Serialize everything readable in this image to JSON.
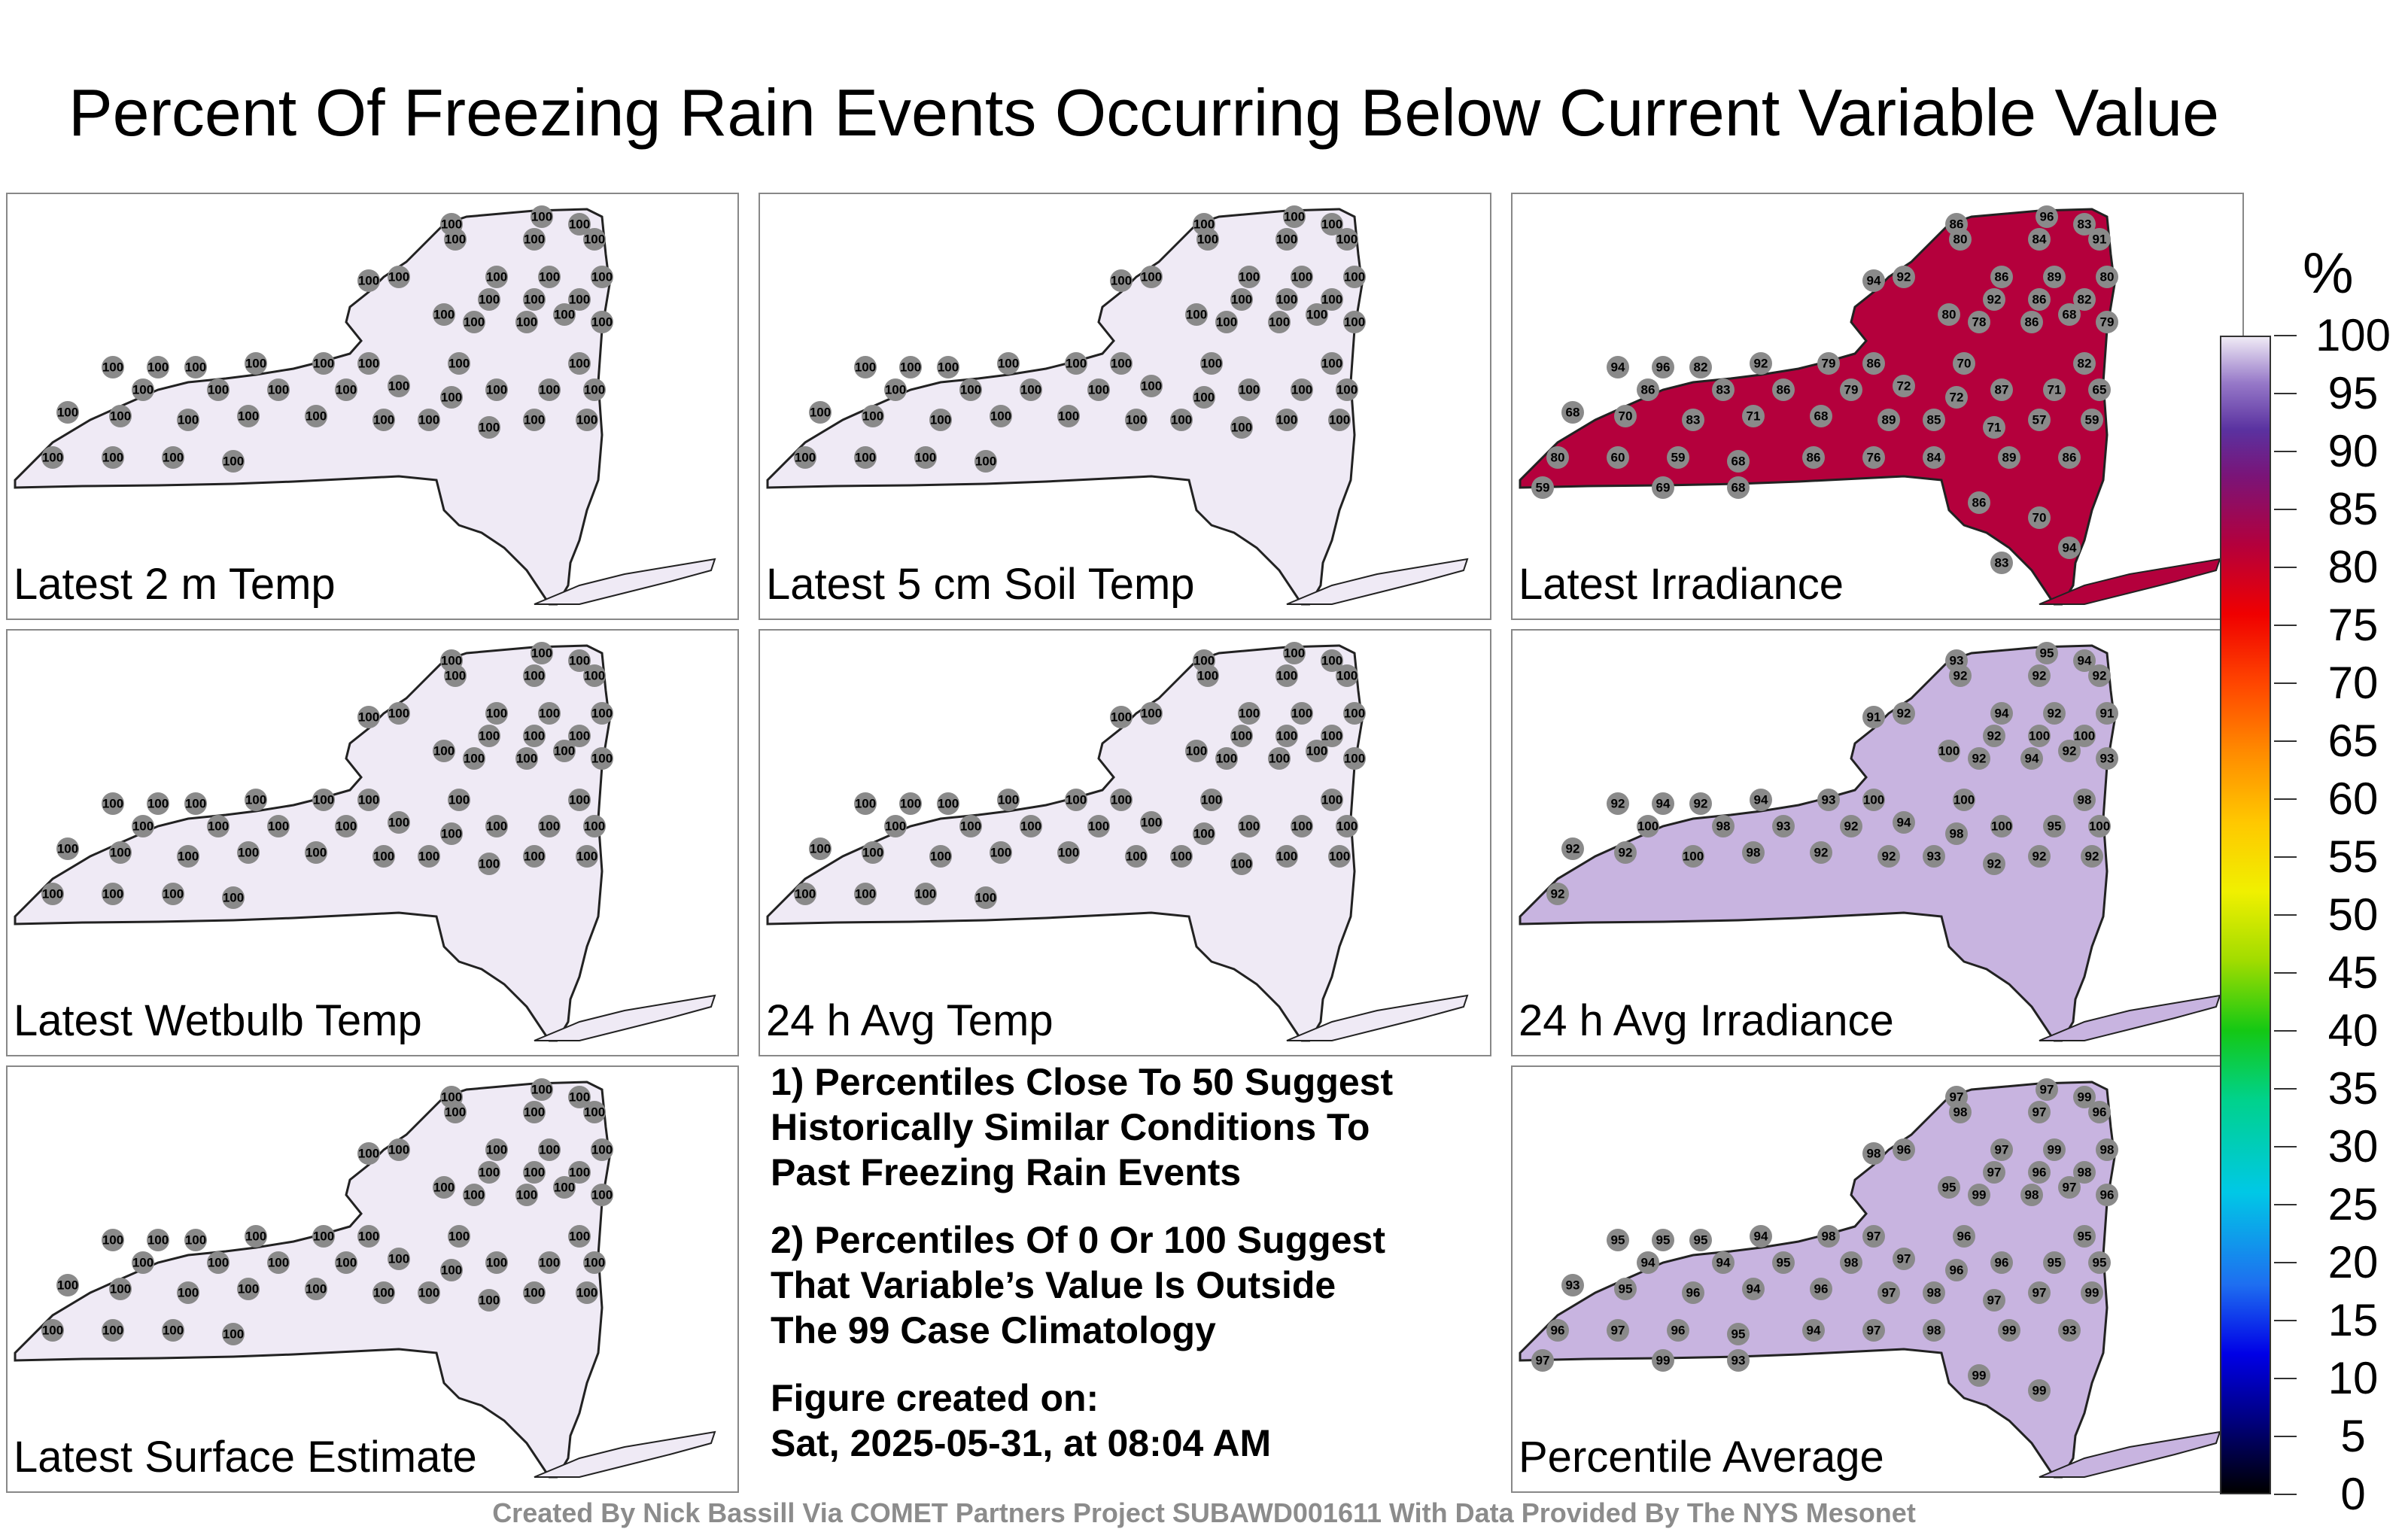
{
  "title": "Percent Of Freezing Rain Events Occurring Below Current Variable Value",
  "colorbar": {
    "unit": "%",
    "ticks": [
      "100",
      "95",
      "90",
      "85",
      "80",
      "75",
      "70",
      "65",
      "60",
      "55",
      "50",
      "45",
      "40",
      "35",
      "30",
      "25",
      "20",
      "15",
      "10",
      "5",
      "0"
    ]
  },
  "panels": [
    {
      "label": "Latest 2 m Temp",
      "fill": "#efeaf5",
      "values": [
        "100",
        "100",
        "100",
        "100",
        "100",
        "100",
        "100",
        "100",
        "100",
        "100",
        "100",
        "100",
        "100",
        "100",
        "100",
        "100",
        "100",
        "100",
        "100",
        "100",
        "100",
        "100",
        "100",
        "100",
        "100",
        "100",
        "100",
        "100",
        "100",
        "100",
        "100",
        "100",
        "100",
        "100",
        "100",
        "100",
        "100",
        "100",
        "100",
        "100",
        "100",
        "100",
        "100",
        "100",
        "100",
        "100",
        "100",
        "100",
        "100",
        "100"
      ]
    },
    {
      "label": "Latest 5 cm Soil Temp",
      "fill": "#efeaf5",
      "values": [
        "100",
        "100",
        "100",
        "100",
        "100",
        "100",
        "100",
        "100",
        "100",
        "100",
        "100",
        "100",
        "100",
        "100",
        "100",
        "100",
        "100",
        "100",
        "100",
        "100",
        "100",
        "100",
        "100",
        "100",
        "100",
        "100",
        "100",
        "100",
        "100",
        "100",
        "100",
        "100",
        "100",
        "100",
        "100",
        "100",
        "100",
        "100",
        "100",
        "100",
        "100",
        "100",
        "100",
        "100",
        "100",
        "100",
        "100",
        "100",
        "100",
        "100"
      ]
    },
    {
      "label": "Latest Irradiance",
      "fill": "#b4003c",
      "values": [
        "86",
        "96",
        "83",
        "80",
        "84",
        "91",
        "94",
        "92",
        "86",
        "89",
        "80",
        "92",
        "86",
        "82",
        "80",
        "78",
        "86",
        "68",
        "79",
        "94",
        "96",
        "82",
        "92",
        "79",
        "86",
        "70",
        "82",
        "86",
        "83",
        "86",
        "79",
        "72",
        "72",
        "87",
        "71",
        "65",
        "68",
        "70",
        "83",
        "71",
        "68",
        "89",
        "85",
        "71",
        "57",
        "59",
        "80",
        "60",
        "59",
        "68",
        "86",
        "76",
        "84",
        "89",
        "86",
        "59",
        "69",
        "68",
        "86",
        "70",
        "94",
        "83"
      ]
    },
    {
      "label": "Latest Wetbulb Temp",
      "fill": "#efeaf5",
      "values": [
        "100",
        "100",
        "100",
        "100",
        "100",
        "100",
        "100",
        "100",
        "100",
        "100",
        "100",
        "100",
        "100",
        "100",
        "100",
        "100",
        "100",
        "100",
        "100",
        "100",
        "100",
        "100",
        "100",
        "100",
        "100",
        "100",
        "100",
        "100",
        "100",
        "100",
        "100",
        "100",
        "100",
        "100",
        "100",
        "100",
        "100",
        "100",
        "100",
        "100",
        "100",
        "100",
        "100",
        "100",
        "100",
        "100",
        "100",
        "100",
        "100",
        "100"
      ]
    },
    {
      "label": "24 h Avg Temp",
      "fill": "#efeaf5",
      "values": [
        "100",
        "100",
        "100",
        "100",
        "100",
        "100",
        "100",
        "100",
        "100",
        "100",
        "100",
        "100",
        "100",
        "100",
        "100",
        "100",
        "100",
        "100",
        "100",
        "100",
        "100",
        "100",
        "100",
        "100",
        "100",
        "100",
        "100",
        "100",
        "100",
        "100",
        "100",
        "100",
        "100",
        "100",
        "100",
        "100",
        "100",
        "100",
        "100",
        "100",
        "100",
        "100",
        "100",
        "100",
        "100",
        "100",
        "100",
        "100",
        "100",
        "100"
      ]
    },
    {
      "label": "24 h Avg Irradiance",
      "fill": "#c8b4e0",
      "values": [
        "93",
        "95",
        "94",
        "92",
        "92",
        "92",
        "91",
        "92",
        "94",
        "92",
        "91",
        "92",
        "100",
        "100",
        "100",
        "92",
        "94",
        "92",
        "93",
        "92",
        "94",
        "92",
        "94",
        "93",
        "100",
        "100",
        "98",
        "100",
        "98",
        "93",
        "92",
        "94",
        "98",
        "100",
        "95",
        "100",
        "92",
        "92",
        "100",
        "98",
        "92",
        "92",
        "93",
        "92",
        "92",
        "92",
        "92"
      ]
    },
    {
      "label": "Latest Surface Estimate",
      "fill": "#efeaf5",
      "values": [
        "100",
        "100",
        "100",
        "100",
        "100",
        "100",
        "100",
        "100",
        "100",
        "100",
        "100",
        "100",
        "100",
        "100",
        "100",
        "100",
        "100",
        "100",
        "100",
        "100",
        "100",
        "100",
        "100",
        "100",
        "100",
        "100",
        "100",
        "100",
        "100",
        "100",
        "100",
        "100",
        "100",
        "100",
        "100",
        "100",
        "100",
        "100",
        "100",
        "100",
        "100",
        "100",
        "100",
        "100",
        "100",
        "100",
        "100",
        "100",
        "100",
        "100"
      ]
    },
    {
      "label": "Percentile Average",
      "fill": "#c8b4e0",
      "values": [
        "97",
        "97",
        "99",
        "98",
        "97",
        "96",
        "98",
        "96",
        "97",
        "99",
        "98",
        "97",
        "96",
        "98",
        "95",
        "99",
        "98",
        "97",
        "96",
        "95",
        "95",
        "95",
        "94",
        "98",
        "97",
        "96",
        "95",
        "94",
        "94",
        "95",
        "98",
        "97",
        "96",
        "96",
        "95",
        "95",
        "93",
        "95",
        "96",
        "94",
        "96",
        "97",
        "98",
        "97",
        "97",
        "99",
        "96",
        "97",
        "96",
        "95",
        "94",
        "97",
        "98",
        "99",
        "93",
        "97",
        "99",
        "93",
        "99",
        "99"
      ]
    }
  ],
  "notes": {
    "note1": [
      "1) Percentiles Close To 50 Suggest",
      "Historically Similar Conditions To",
      "Past Freezing Rain Events"
    ],
    "note2": [
      "2) Percentiles Of 0 Or 100 Suggest",
      "That Variable’s Value Is Outside",
      "The 99 Case Climatology"
    ],
    "created_label": "Figure created on:",
    "created_value": "Sat, 2025-05-31, at 08:04 AM"
  },
  "footer": "Created By Nick Bassill Via COMET Partners Project SUBAWD001611 With Data Provided By The NYS Mesonet"
}
